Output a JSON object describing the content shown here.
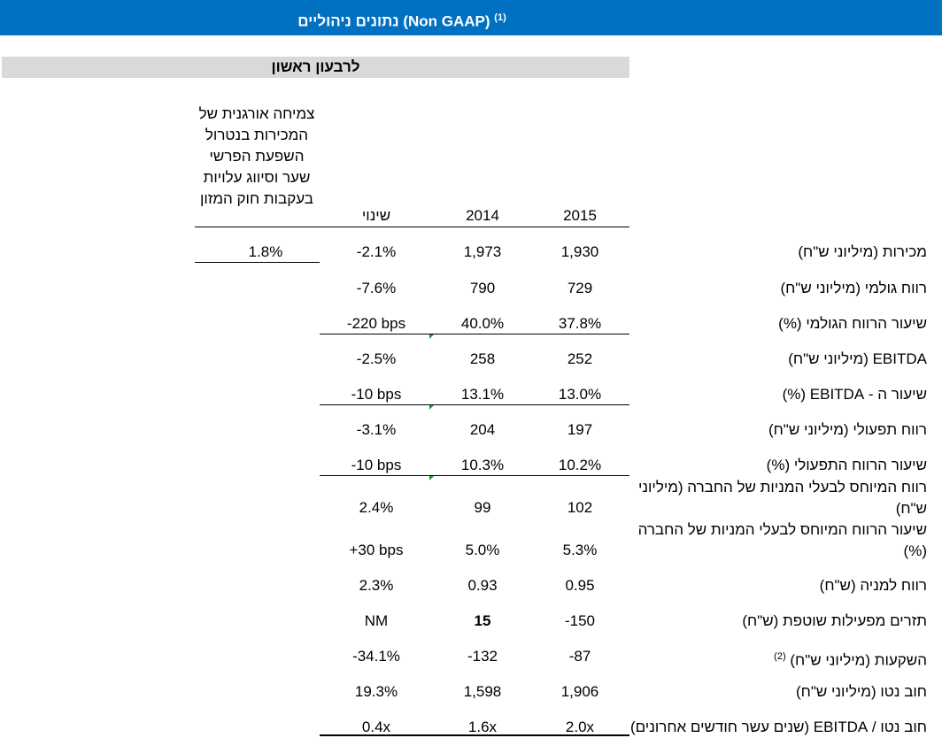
{
  "header": {
    "title": "נתונים ניהוליים (Non GAAP)",
    "footnote": "(1)"
  },
  "period": "לרבעון ראשון",
  "organic_note": "צמיחה אורגנית של המכירות בנטרול השפעת הפרשי שער וסיווג עלויות בעקבות חוק המזון",
  "organic_value": "1.8%",
  "columns": {
    "y2015": "2015",
    "y2014": "2014",
    "change": "שינוי"
  },
  "rows": [
    {
      "label": "מכירות (מיליוני ש\"ח)",
      "v2015": "1,930",
      "v2014": "1,973",
      "change": "-2.1%"
    },
    {
      "label": "רווח גולמי (מיליוני ש\"ח)",
      "v2015": "729",
      "v2014": "790",
      "change": "-7.6%"
    },
    {
      "label": "שיעור הרווח הגולמי (%)",
      "v2015": "37.8%",
      "v2014": "40.0%",
      "change": "-220 bps"
    },
    {
      "label": "EBITDA (מיליוני ש\"ח)",
      "v2015": "252",
      "v2014": "258",
      "change": "-2.5%"
    },
    {
      "label": "שיעור ה - EBITDA (%)",
      "v2015": "13.0%",
      "v2014": "13.1%",
      "change": "-10 bps"
    },
    {
      "label": "רווח תפעולי (מיליוני ש\"ח)",
      "v2015": "197",
      "v2014": "204",
      "change": "-3.1%"
    },
    {
      "label": "שיעור הרווח התפעולי (%)",
      "v2015": "10.2%",
      "v2014": "10.3%",
      "change": "-10 bps"
    },
    {
      "label": "רווח המיוחס לבעלי המניות של החברה (מיליוני ש\"ח)",
      "v2015": "102",
      "v2014": "99",
      "change": "2.4%"
    },
    {
      "label": "שיעור הרווח המיוחס לבעלי המניות של החברה (%)",
      "v2015": "5.3%",
      "v2014": "5.0%",
      "change": "+30 bps"
    },
    {
      "label": "רווח למניה (ש\"ח)",
      "v2015": "0.95",
      "v2014": "0.93",
      "change": "2.3%"
    },
    {
      "label": "תזרים מפעילות שוטפת (ש\"ח)",
      "v2015": "-150",
      "v2014": "15",
      "change": "NM"
    },
    {
      "label": "השקעות (מיליוני ש\"ח)",
      "footnote": "(2)",
      "v2015": "-87",
      "v2014": "-132",
      "change": "-34.1%"
    },
    {
      "label": "חוב נטו (מיליוני ש\"ח)",
      "v2015": "1,906",
      "v2014": "1,598",
      "change": "19.3%"
    },
    {
      "label": "חוב נטו / EBITDA (שנים עשר חודשים אחרונים)",
      "v2015": "2.0x",
      "v2014": "1.6x",
      "change": "0.4x"
    }
  ],
  "colors": {
    "header_bg": "#0070c0",
    "subheader_bg": "#d9d9d9",
    "comment_marker": "#1a9a2a"
  }
}
